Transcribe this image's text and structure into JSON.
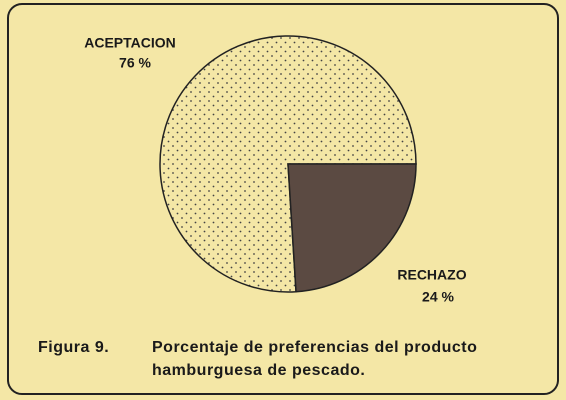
{
  "chart_data": {
    "type": "pie",
    "categories": [
      "ACEPTACION",
      "RECHAZO"
    ],
    "values": [
      76,
      24
    ],
    "value_labels": [
      "76 %",
      "24 %"
    ],
    "colors": [
      "#f4e7a6",
      "#5b4a42"
    ],
    "patterns": [
      "dots",
      "solid"
    ],
    "start_angle": 90,
    "direction": "counterclockwise",
    "figure_label": "Figura 9.",
    "caption": [
      "Porcentaje de preferencias del producto",
      "hamburguesa de pescado."
    ]
  }
}
